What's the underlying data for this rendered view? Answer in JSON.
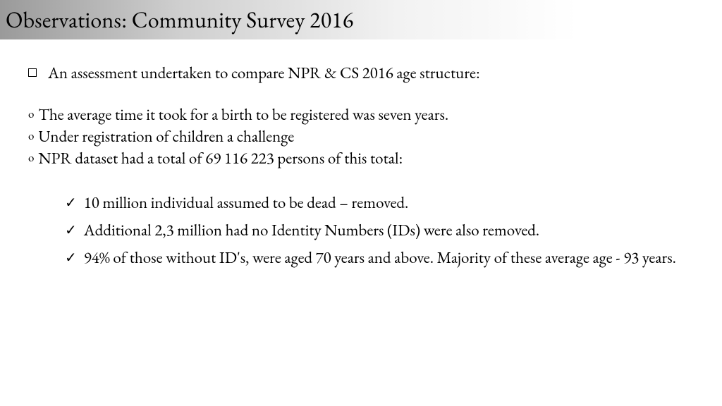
{
  "title": "Observations: Community Survey 2016",
  "level1": {
    "text": "An assessment undertaken to compare NPR & CS 2016 age structure:"
  },
  "level2": [
    "The average time it took for a birth to be registered was seven years.",
    "Under registration of children a challenge",
    "NPR dataset had a total of 69 116 223 persons  of this total:"
  ],
  "level3": [
    "10 million individual assumed to be dead – removed.",
    "Additional  2,3 million had no Identity Numbers (IDs) were also removed.",
    "94% of those without ID's, were aged 70 years and above. Majority of these average age - 93 years."
  ]
}
